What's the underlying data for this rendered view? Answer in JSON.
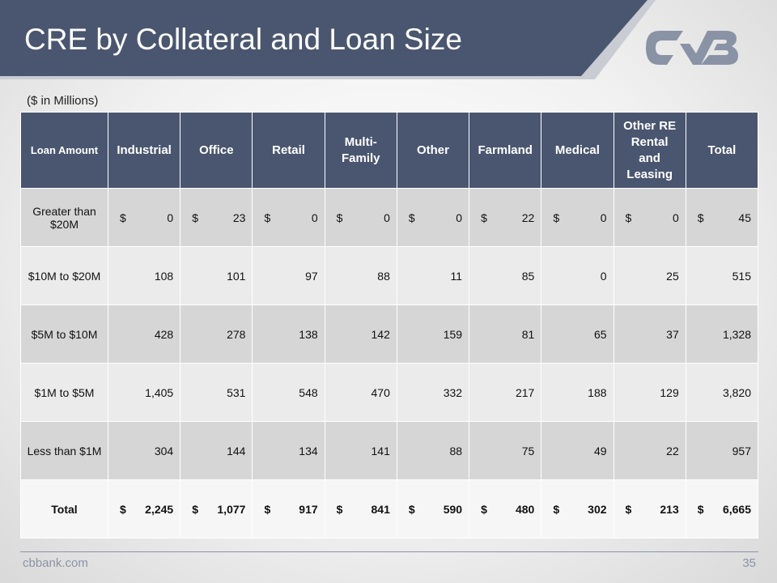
{
  "header": {
    "title": "CRE by Collateral and Loan Size",
    "subtitle": "($ in Millions)"
  },
  "table": {
    "columns": [
      "Loan Amount",
      "Industrial",
      "Office",
      "Retail",
      "Multi-Family",
      "Other",
      "Farmland",
      "Medical",
      "Other RE Rental and Leasing",
      "Total"
    ],
    "rows": [
      {
        "label": "Greater than $20M",
        "currency": "$",
        "values": [
          "0",
          "23",
          "0",
          "0",
          "0",
          "22",
          "0",
          "0",
          "45"
        ]
      },
      {
        "label": "$10M to $20M",
        "values": [
          "108",
          "101",
          "97",
          "88",
          "11",
          "85",
          "0",
          "25",
          "515"
        ]
      },
      {
        "label": "$5M to $10M",
        "values": [
          "428",
          "278",
          "138",
          "142",
          "159",
          "81",
          "65",
          "37",
          "1,328"
        ]
      },
      {
        "label": "$1M to $5M",
        "values": [
          "1,405",
          "531",
          "548",
          "470",
          "332",
          "217",
          "188",
          "129",
          "3,820"
        ]
      },
      {
        "label": "Less than $1M",
        "values": [
          "304",
          "144",
          "134",
          "141",
          "88",
          "75",
          "49",
          "22",
          "957"
        ]
      },
      {
        "label": "Total",
        "currency": "$",
        "values": [
          "2,245",
          "1,077",
          "917",
          "841",
          "590",
          "480",
          "302",
          "213",
          "6,665"
        ]
      }
    ]
  },
  "footer": {
    "site": "cbbank.com",
    "page": "35"
  }
}
